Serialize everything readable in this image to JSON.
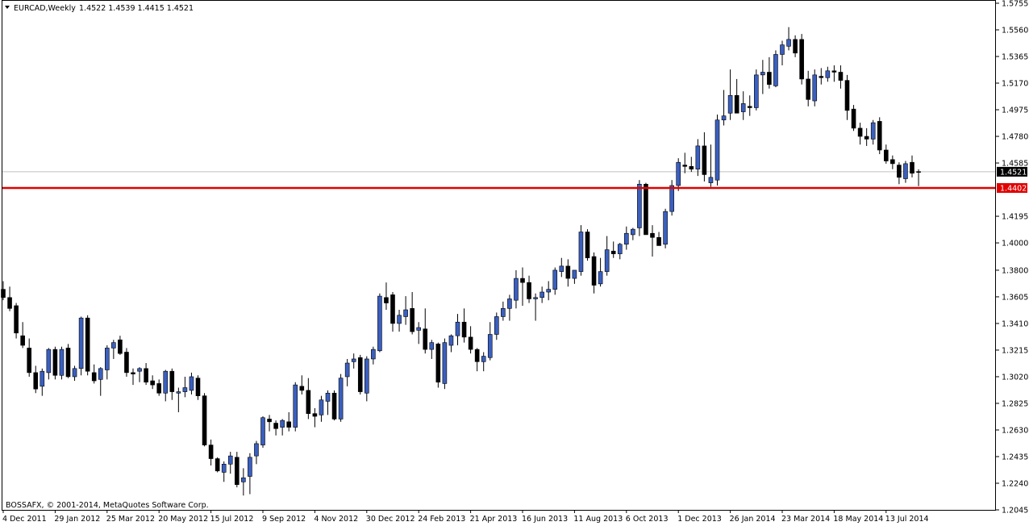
{
  "header": {
    "symbol_label": "EURCAD,Weekly",
    "ohlc": "1.4522 1.4539 1.4415 1.4521"
  },
  "copyright": "BOSSAFX, © 2001-2014, MetaQuotes Software Corp.",
  "price_badges": {
    "current": "1.4521",
    "level": "1.4402"
  },
  "colors": {
    "bull_body": "#3a5fbf",
    "bear_body": "#000000",
    "level_line": "#e00000",
    "bid_line": "#c0c0c0",
    "grid_frame": "#000000"
  },
  "chart_data": {
    "type": "candlestick",
    "title": "",
    "symbol": "EURCAD",
    "timeframe": "Weekly",
    "ylim": [
      1.2045,
      1.5755
    ],
    "y_ticks": [
      "1.5755",
      "1.5560",
      "1.5365",
      "1.5170",
      "1.4975",
      "1.4780",
      "1.4585",
      "1.4195",
      "1.4000",
      "1.3800",
      "1.3605",
      "1.3410",
      "1.3215",
      "1.3020",
      "1.2825",
      "1.2630",
      "1.2435",
      "1.2240",
      "1.2045"
    ],
    "x_ticks": [
      {
        "index": 0,
        "label": "4 Dec 2011"
      },
      {
        "index": 8,
        "label": "29 Jan 2012"
      },
      {
        "index": 16,
        "label": "25 Mar 2012"
      },
      {
        "index": 24,
        "label": "20 May 2012"
      },
      {
        "index": 32,
        "label": "15 Jul 2012"
      },
      {
        "index": 40,
        "label": "9 Sep 2012"
      },
      {
        "index": 48,
        "label": "4 Nov 2012"
      },
      {
        "index": 56,
        "label": "30 Dec 2012"
      },
      {
        "index": 64,
        "label": "24 Feb 2013"
      },
      {
        "index": 72,
        "label": "21 Apr 2013"
      },
      {
        "index": 80,
        "label": "16 Jun 2013"
      },
      {
        "index": 88,
        "label": "11 Aug 2013"
      },
      {
        "index": 96,
        "label": "6 Oct 2013"
      },
      {
        "index": 104,
        "label": "1 Dec 2013"
      },
      {
        "index": 112,
        "label": "26 Jan 2014"
      },
      {
        "index": 120,
        "label": "23 Mar 2014"
      },
      {
        "index": 128,
        "label": "18 May 2014"
      },
      {
        "index": 136,
        "label": "13 Jul 2014"
      }
    ],
    "horizontal_line": {
      "value": 1.4402,
      "label": "1.4402"
    },
    "last_price": 1.4521,
    "series": [
      {
        "o": 1.366,
        "h": 1.372,
        "l": 1.358,
        "c": 1.36
      },
      {
        "o": 1.36,
        "h": 1.368,
        "l": 1.35,
        "c": 1.352
      },
      {
        "o": 1.354,
        "h": 1.356,
        "l": 1.33,
        "c": 1.334
      },
      {
        "o": 1.332,
        "h": 1.342,
        "l": 1.323,
        "c": 1.325
      },
      {
        "o": 1.323,
        "h": 1.33,
        "l": 1.302,
        "c": 1.305
      },
      {
        "o": 1.305,
        "h": 1.31,
        "l": 1.29,
        "c": 1.293
      },
      {
        "o": 1.295,
        "h": 1.308,
        "l": 1.288,
        "c": 1.306
      },
      {
        "o": 1.305,
        "h": 1.323,
        "l": 1.3,
        "c": 1.322
      },
      {
        "o": 1.322,
        "h": 1.324,
        "l": 1.3,
        "c": 1.303
      },
      {
        "o": 1.303,
        "h": 1.324,
        "l": 1.3,
        "c": 1.322
      },
      {
        "o": 1.323,
        "h": 1.326,
        "l": 1.301,
        "c": 1.302
      },
      {
        "o": 1.302,
        "h": 1.31,
        "l": 1.299,
        "c": 1.308
      },
      {
        "o": 1.308,
        "h": 1.346,
        "l": 1.303,
        "c": 1.345
      },
      {
        "o": 1.345,
        "h": 1.347,
        "l": 1.303,
        "c": 1.306
      },
      {
        "o": 1.305,
        "h": 1.311,
        "l": 1.297,
        "c": 1.299
      },
      {
        "o": 1.3,
        "h": 1.309,
        "l": 1.288,
        "c": 1.308
      },
      {
        "o": 1.307,
        "h": 1.325,
        "l": 1.3,
        "c": 1.323
      },
      {
        "o": 1.323,
        "h": 1.329,
        "l": 1.315,
        "c": 1.327
      },
      {
        "o": 1.329,
        "h": 1.332,
        "l": 1.318,
        "c": 1.319
      },
      {
        "o": 1.32,
        "h": 1.323,
        "l": 1.302,
        "c": 1.305
      },
      {
        "o": 1.305,
        "h": 1.308,
        "l": 1.296,
        "c": 1.304
      },
      {
        "o": 1.306,
        "h": 1.309,
        "l": 1.298,
        "c": 1.308
      },
      {
        "o": 1.308,
        "h": 1.312,
        "l": 1.296,
        "c": 1.298
      },
      {
        "o": 1.299,
        "h": 1.303,
        "l": 1.293,
        "c": 1.296
      },
      {
        "o": 1.297,
        "h": 1.3,
        "l": 1.288,
        "c": 1.29
      },
      {
        "o": 1.29,
        "h": 1.307,
        "l": 1.284,
        "c": 1.306
      },
      {
        "o": 1.306,
        "h": 1.308,
        "l": 1.285,
        "c": 1.291
      },
      {
        "o": 1.29,
        "h": 1.294,
        "l": 1.276,
        "c": 1.291
      },
      {
        "o": 1.291,
        "h": 1.302,
        "l": 1.287,
        "c": 1.294
      },
      {
        "o": 1.292,
        "h": 1.305,
        "l": 1.289,
        "c": 1.302
      },
      {
        "o": 1.301,
        "h": 1.303,
        "l": 1.285,
        "c": 1.288
      },
      {
        "o": 1.288,
        "h": 1.29,
        "l": 1.251,
        "c": 1.252
      },
      {
        "o": 1.252,
        "h": 1.256,
        "l": 1.237,
        "c": 1.242
      },
      {
        "o": 1.242,
        "h": 1.243,
        "l": 1.232,
        "c": 1.233
      },
      {
        "o": 1.232,
        "h": 1.24,
        "l": 1.225,
        "c": 1.238
      },
      {
        "o": 1.238,
        "h": 1.247,
        "l": 1.231,
        "c": 1.244
      },
      {
        "o": 1.243,
        "h": 1.247,
        "l": 1.221,
        "c": 1.223
      },
      {
        "o": 1.225,
        "h": 1.235,
        "l": 1.215,
        "c": 1.228
      },
      {
        "o": 1.229,
        "h": 1.246,
        "l": 1.216,
        "c": 1.243
      },
      {
        "o": 1.244,
        "h": 1.255,
        "l": 1.238,
        "c": 1.253
      },
      {
        "o": 1.252,
        "h": 1.273,
        "l": 1.25,
        "c": 1.272
      },
      {
        "o": 1.271,
        "h": 1.274,
        "l": 1.262,
        "c": 1.269
      },
      {
        "o": 1.268,
        "h": 1.27,
        "l": 1.259,
        "c": 1.264
      },
      {
        "o": 1.265,
        "h": 1.271,
        "l": 1.259,
        "c": 1.27
      },
      {
        "o": 1.269,
        "h": 1.276,
        "l": 1.262,
        "c": 1.265
      },
      {
        "o": 1.265,
        "h": 1.298,
        "l": 1.262,
        "c": 1.296
      },
      {
        "o": 1.295,
        "h": 1.303,
        "l": 1.289,
        "c": 1.292
      },
      {
        "o": 1.292,
        "h": 1.301,
        "l": 1.271,
        "c": 1.275
      },
      {
        "o": 1.275,
        "h": 1.279,
        "l": 1.265,
        "c": 1.273
      },
      {
        "o": 1.274,
        "h": 1.288,
        "l": 1.269,
        "c": 1.285
      },
      {
        "o": 1.284,
        "h": 1.292,
        "l": 1.274,
        "c": 1.29
      },
      {
        "o": 1.29,
        "h": 1.292,
        "l": 1.27,
        "c": 1.271
      },
      {
        "o": 1.271,
        "h": 1.304,
        "l": 1.269,
        "c": 1.301
      },
      {
        "o": 1.302,
        "h": 1.315,
        "l": 1.295,
        "c": 1.312
      },
      {
        "o": 1.313,
        "h": 1.319,
        "l": 1.308,
        "c": 1.315
      },
      {
        "o": 1.316,
        "h": 1.318,
        "l": 1.289,
        "c": 1.291
      },
      {
        "o": 1.29,
        "h": 1.317,
        "l": 1.284,
        "c": 1.315
      },
      {
        "o": 1.315,
        "h": 1.324,
        "l": 1.311,
        "c": 1.322
      },
      {
        "o": 1.321,
        "h": 1.363,
        "l": 1.32,
        "c": 1.361
      },
      {
        "o": 1.36,
        "h": 1.371,
        "l": 1.351,
        "c": 1.356
      },
      {
        "o": 1.362,
        "h": 1.364,
        "l": 1.335,
        "c": 1.341
      },
      {
        "o": 1.341,
        "h": 1.351,
        "l": 1.335,
        "c": 1.347
      },
      {
        "o": 1.346,
        "h": 1.361,
        "l": 1.34,
        "c": 1.351
      },
      {
        "o": 1.352,
        "h": 1.364,
        "l": 1.333,
        "c": 1.335
      },
      {
        "o": 1.336,
        "h": 1.342,
        "l": 1.326,
        "c": 1.338
      },
      {
        "o": 1.337,
        "h": 1.352,
        "l": 1.319,
        "c": 1.322
      },
      {
        "o": 1.322,
        "h": 1.329,
        "l": 1.315,
        "c": 1.327
      },
      {
        "o": 1.326,
        "h": 1.327,
        "l": 1.294,
        "c": 1.298
      },
      {
        "o": 1.297,
        "h": 1.33,
        "l": 1.293,
        "c": 1.327
      },
      {
        "o": 1.325,
        "h": 1.333,
        "l": 1.32,
        "c": 1.332
      },
      {
        "o": 1.332,
        "h": 1.348,
        "l": 1.325,
        "c": 1.342
      },
      {
        "o": 1.342,
        "h": 1.352,
        "l": 1.327,
        "c": 1.331
      },
      {
        "o": 1.331,
        "h": 1.339,
        "l": 1.319,
        "c": 1.322
      },
      {
        "o": 1.322,
        "h": 1.323,
        "l": 1.306,
        "c": 1.313
      },
      {
        "o": 1.313,
        "h": 1.32,
        "l": 1.306,
        "c": 1.317
      },
      {
        "o": 1.316,
        "h": 1.342,
        "l": 1.314,
        "c": 1.333
      },
      {
        "o": 1.333,
        "h": 1.349,
        "l": 1.329,
        "c": 1.346
      },
      {
        "o": 1.346,
        "h": 1.357,
        "l": 1.343,
        "c": 1.352
      },
      {
        "o": 1.352,
        "h": 1.362,
        "l": 1.343,
        "c": 1.359
      },
      {
        "o": 1.358,
        "h": 1.38,
        "l": 1.352,
        "c": 1.374
      },
      {
        "o": 1.374,
        "h": 1.382,
        "l": 1.354,
        "c": 1.371
      },
      {
        "o": 1.371,
        "h": 1.376,
        "l": 1.356,
        "c": 1.359
      },
      {
        "o": 1.359,
        "h": 1.363,
        "l": 1.343,
        "c": 1.36
      },
      {
        "o": 1.36,
        "h": 1.368,
        "l": 1.356,
        "c": 1.364
      },
      {
        "o": 1.364,
        "h": 1.372,
        "l": 1.358,
        "c": 1.366
      },
      {
        "o": 1.366,
        "h": 1.382,
        "l": 1.362,
        "c": 1.38
      },
      {
        "o": 1.379,
        "h": 1.389,
        "l": 1.375,
        "c": 1.383
      },
      {
        "o": 1.383,
        "h": 1.388,
        "l": 1.368,
        "c": 1.374
      },
      {
        "o": 1.374,
        "h": 1.38,
        "l": 1.37,
        "c": 1.38
      },
      {
        "o": 1.379,
        "h": 1.413,
        "l": 1.376,
        "c": 1.408
      },
      {
        "o": 1.408,
        "h": 1.41,
        "l": 1.387,
        "c": 1.389
      },
      {
        "o": 1.39,
        "h": 1.393,
        "l": 1.363,
        "c": 1.369
      },
      {
        "o": 1.37,
        "h": 1.389,
        "l": 1.368,
        "c": 1.379
      },
      {
        "o": 1.379,
        "h": 1.405,
        "l": 1.376,
        "c": 1.395
      },
      {
        "o": 1.394,
        "h": 1.401,
        "l": 1.389,
        "c": 1.392
      },
      {
        "o": 1.392,
        "h": 1.4,
        "l": 1.388,
        "c": 1.399
      },
      {
        "o": 1.399,
        "h": 1.412,
        "l": 1.395,
        "c": 1.407
      },
      {
        "o": 1.406,
        "h": 1.411,
        "l": 1.402,
        "c": 1.41
      },
      {
        "o": 1.411,
        "h": 1.446,
        "l": 1.405,
        "c": 1.443
      },
      {
        "o": 1.443,
        "h": 1.444,
        "l": 1.406,
        "c": 1.406
      },
      {
        "o": 1.407,
        "h": 1.413,
        "l": 1.39,
        "c": 1.404
      },
      {
        "o": 1.404,
        "h": 1.408,
        "l": 1.399,
        "c": 1.398
      },
      {
        "o": 1.399,
        "h": 1.425,
        "l": 1.396,
        "c": 1.423
      },
      {
        "o": 1.423,
        "h": 1.446,
        "l": 1.42,
        "c": 1.442
      },
      {
        "o": 1.442,
        "h": 1.462,
        "l": 1.438,
        "c": 1.459
      },
      {
        "o": 1.457,
        "h": 1.466,
        "l": 1.451,
        "c": 1.456
      },
      {
        "o": 1.456,
        "h": 1.463,
        "l": 1.452,
        "c": 1.454
      },
      {
        "o": 1.454,
        "h": 1.476,
        "l": 1.449,
        "c": 1.471
      },
      {
        "o": 1.471,
        "h": 1.481,
        "l": 1.445,
        "c": 1.45
      },
      {
        "o": 1.444,
        "h": 1.472,
        "l": 1.441,
        "c": 1.448
      },
      {
        "o": 1.446,
        "h": 1.494,
        "l": 1.442,
        "c": 1.49
      },
      {
        "o": 1.49,
        "h": 1.512,
        "l": 1.486,
        "c": 1.493
      },
      {
        "o": 1.495,
        "h": 1.527,
        "l": 1.49,
        "c": 1.508
      },
      {
        "o": 1.508,
        "h": 1.52,
        "l": 1.495,
        "c": 1.495
      },
      {
        "o": 1.496,
        "h": 1.511,
        "l": 1.49,
        "c": 1.502
      },
      {
        "o": 1.5,
        "h": 1.508,
        "l": 1.493,
        "c": 1.499
      },
      {
        "o": 1.499,
        "h": 1.527,
        "l": 1.497,
        "c": 1.523
      },
      {
        "o": 1.523,
        "h": 1.534,
        "l": 1.509,
        "c": 1.525
      },
      {
        "o": 1.525,
        "h": 1.536,
        "l": 1.513,
        "c": 1.516
      },
      {
        "o": 1.515,
        "h": 1.541,
        "l": 1.514,
        "c": 1.538
      },
      {
        "o": 1.538,
        "h": 1.548,
        "l": 1.53,
        "c": 1.545
      },
      {
        "o": 1.544,
        "h": 1.558,
        "l": 1.541,
        "c": 1.549
      },
      {
        "o": 1.549,
        "h": 1.552,
        "l": 1.536,
        "c": 1.539
      },
      {
        "o": 1.549,
        "h": 1.553,
        "l": 1.516,
        "c": 1.52
      },
      {
        "o": 1.52,
        "h": 1.526,
        "l": 1.5,
        "c": 1.505
      },
      {
        "o": 1.504,
        "h": 1.527,
        "l": 1.5,
        "c": 1.523
      },
      {
        "o": 1.522,
        "h": 1.528,
        "l": 1.516,
        "c": 1.521
      },
      {
        "o": 1.521,
        "h": 1.529,
        "l": 1.518,
        "c": 1.526
      },
      {
        "o": 1.526,
        "h": 1.53,
        "l": 1.518,
        "c": 1.525
      },
      {
        "o": 1.525,
        "h": 1.53,
        "l": 1.513,
        "c": 1.519
      },
      {
        "o": 1.519,
        "h": 1.523,
        "l": 1.49,
        "c": 1.497
      },
      {
        "o": 1.498,
        "h": 1.501,
        "l": 1.482,
        "c": 1.484
      },
      {
        "o": 1.484,
        "h": 1.488,
        "l": 1.472,
        "c": 1.478
      },
      {
        "o": 1.478,
        "h": 1.484,
        "l": 1.471,
        "c": 1.476
      },
      {
        "o": 1.476,
        "h": 1.49,
        "l": 1.472,
        "c": 1.488
      },
      {
        "o": 1.489,
        "h": 1.492,
        "l": 1.465,
        "c": 1.468
      },
      {
        "o": 1.468,
        "h": 1.472,
        "l": 1.458,
        "c": 1.46
      },
      {
        "o": 1.461,
        "h": 1.464,
        "l": 1.454,
        "c": 1.458
      },
      {
        "o": 1.457,
        "h": 1.459,
        "l": 1.443,
        "c": 1.448
      },
      {
        "o": 1.447,
        "h": 1.46,
        "l": 1.444,
        "c": 1.458
      },
      {
        "o": 1.459,
        "h": 1.464,
        "l": 1.448,
        "c": 1.451
      },
      {
        "o": 1.4522,
        "h": 1.4539,
        "l": 1.4415,
        "c": 1.4521
      }
    ]
  }
}
